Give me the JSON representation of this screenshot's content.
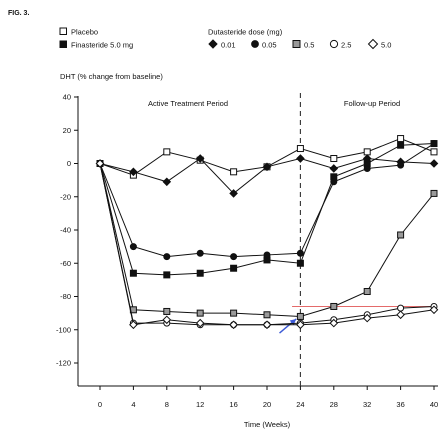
{
  "figure_label": "FIG. 3.",
  "chart_data": {
    "type": "line",
    "title": "",
    "ylabel": "DHT (% change from baseline)",
    "xlabel": "Time (Weeks)",
    "xlim": [
      0,
      40
    ],
    "ylim": [
      -120,
      40
    ],
    "x_ticks": [
      0,
      4,
      8,
      12,
      16,
      20,
      24,
      28,
      32,
      36,
      40
    ],
    "y_ticks": [
      40,
      20,
      0,
      -20,
      -40,
      -60,
      -80,
      -100,
      -120
    ],
    "grid": false,
    "annotations": {
      "active_period": "Active Treatment Period",
      "followup_period": "Follow-up Period",
      "divider_x": 24,
      "reference_line_y": -86,
      "reference_line_x": [
        23,
        40
      ],
      "reference_line_color": "#e46a6a",
      "arrow_color": "#3c5ad6",
      "arrow_from": [
        21.5,
        -102
      ],
      "arrow_to": [
        23.5,
        -93.5
      ]
    },
    "legend": {
      "placement": "top-left",
      "left_items": [
        {
          "label": "Placebo",
          "marker": "square-open"
        },
        {
          "label": "Finasteride 5.0 mg",
          "marker": "square-filled"
        }
      ],
      "dose_title": "Dutasteride dose (mg)",
      "dose_items": [
        {
          "label": "0.01",
          "marker": "diamond-filled"
        },
        {
          "label": "0.05",
          "marker": "circle-filled"
        },
        {
          "label": "0.5",
          "marker": "square-gray"
        },
        {
          "label": "2.5",
          "marker": "circle-open"
        },
        {
          "label": "5.0",
          "marker": "diamond-open"
        }
      ]
    },
    "series": [
      {
        "name": "Placebo",
        "marker": "square-open",
        "x": [
          0,
          4,
          8,
          12,
          16,
          20,
          24,
          28,
          32,
          36,
          40
        ],
        "y": [
          0,
          -7,
          7,
          2,
          -5,
          -2,
          9,
          3,
          7,
          15,
          7
        ]
      },
      {
        "name": "Finasteride 5.0 mg",
        "marker": "square-filled",
        "x": [
          0,
          4,
          8,
          12,
          16,
          20,
          24,
          28,
          32,
          36,
          40
        ],
        "y": [
          0,
          -66,
          -67,
          -66,
          -63,
          -58,
          -60,
          -8,
          0,
          11,
          12
        ]
      },
      {
        "name": "0.01",
        "marker": "diamond-filled",
        "x": [
          0,
          4,
          8,
          12,
          16,
          20,
          24,
          28,
          32,
          36,
          40
        ],
        "y": [
          0,
          -5,
          -11,
          3,
          -18,
          -2,
          3,
          -3,
          3,
          1,
          0
        ]
      },
      {
        "name": "0.05",
        "marker": "circle-filled",
        "x": [
          0,
          4,
          8,
          12,
          16,
          20,
          24,
          28,
          32,
          36,
          40
        ],
        "y": [
          0,
          -50,
          -56,
          -54,
          -56,
          -55,
          -54,
          -11,
          -3,
          -1,
          12
        ]
      },
      {
        "name": "0.5",
        "marker": "square-gray",
        "x": [
          0,
          4,
          8,
          12,
          16,
          20,
          24,
          28,
          32,
          36,
          40
        ],
        "y": [
          0,
          -88,
          -89,
          -90,
          -90,
          -91,
          -92,
          -86,
          -77,
          -43,
          -18
        ]
      },
      {
        "name": "2.5",
        "marker": "circle-open",
        "x": [
          0,
          4,
          8,
          12,
          16,
          20,
          24,
          28,
          32,
          36,
          40
        ],
        "y": [
          0,
          -96,
          -96,
          -97,
          -97,
          -97,
          -96,
          -94,
          -91,
          -87,
          -86
        ]
      },
      {
        "name": "5.0",
        "marker": "diamond-open",
        "x": [
          0,
          4,
          8,
          12,
          16,
          20,
          24,
          28,
          32,
          36,
          40
        ],
        "y": [
          0,
          -97,
          -94,
          -96,
          -97,
          -97,
          -97,
          -96,
          -93,
          -91,
          -88
        ]
      }
    ]
  }
}
